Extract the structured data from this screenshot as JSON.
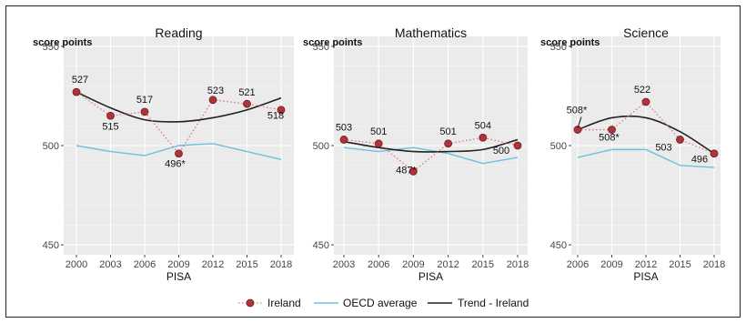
{
  "chart_data": [
    {
      "type": "line",
      "title": "Reading",
      "ylabel": "score points",
      "xlabel": "PISA",
      "ylim": [
        445,
        555
      ],
      "yticks": [
        450,
        500,
        550
      ],
      "x": [
        "2000",
        "2003",
        "2006",
        "2009",
        "2012",
        "2015",
        "2018"
      ],
      "series": [
        {
          "name": "Ireland",
          "values": [
            527,
            515,
            517,
            496,
            523,
            521,
            518
          ],
          "labels": [
            "527",
            "515",
            "517",
            "496*",
            "523",
            "521",
            "518"
          ]
        },
        {
          "name": "OECD average",
          "values": [
            500,
            497,
            495,
            500,
            501,
            497,
            493
          ]
        },
        {
          "name": "Trend - Ireland",
          "values": [
            527,
            519,
            513,
            512,
            514,
            518,
            524
          ]
        }
      ]
    },
    {
      "type": "line",
      "title": "Mathematics",
      "ylabel": "score points",
      "xlabel": "PISA",
      "ylim": [
        445,
        555
      ],
      "yticks": [
        450,
        500,
        550
      ],
      "x": [
        "2003",
        "2006",
        "2009",
        "2012",
        "2015",
        "2018"
      ],
      "series": [
        {
          "name": "Ireland",
          "values": [
            503,
            501,
            487,
            501,
            504,
            500
          ],
          "labels": [
            "503",
            "501",
            "487*",
            "501",
            "504",
            "500"
          ]
        },
        {
          "name": "OECD average",
          "values": [
            499,
            497,
            499,
            496,
            491,
            494
          ]
        },
        {
          "name": "Trend - Ireland",
          "values": [
            502,
            499,
            497,
            497,
            498,
            503
          ]
        }
      ]
    },
    {
      "type": "line",
      "title": "Science",
      "ylabel": "score points",
      "xlabel": "PISA",
      "ylim": [
        445,
        555
      ],
      "yticks": [
        450,
        500,
        550
      ],
      "x": [
        "2006",
        "2009",
        "2012",
        "2015",
        "2018"
      ],
      "series": [
        {
          "name": "Ireland",
          "values": [
            508,
            508,
            522,
            503,
            496
          ],
          "labels": [
            "508*",
            "508*",
            "522",
            "503",
            "496"
          ]
        },
        {
          "name": "OECD average",
          "values": [
            494,
            498,
            498,
            490,
            489
          ]
        },
        {
          "name": "Trend - Ireland",
          "values": [
            508,
            514,
            514,
            507,
            496
          ]
        }
      ]
    }
  ],
  "legend": {
    "items": [
      {
        "label": "Ireland",
        "color": "#b0333a"
      },
      {
        "label": "OECD average",
        "color": "#6fbfe0"
      },
      {
        "label": "Trend - Ireland",
        "color": "#222222"
      }
    ]
  },
  "colors": {
    "ireland_marker": "#b0333a",
    "ireland_dotted": "#d9787e",
    "oecd": "#6fbfe0",
    "trend": "#222222",
    "panel_bg": "#ebebeb",
    "grid": "#ffffff"
  }
}
